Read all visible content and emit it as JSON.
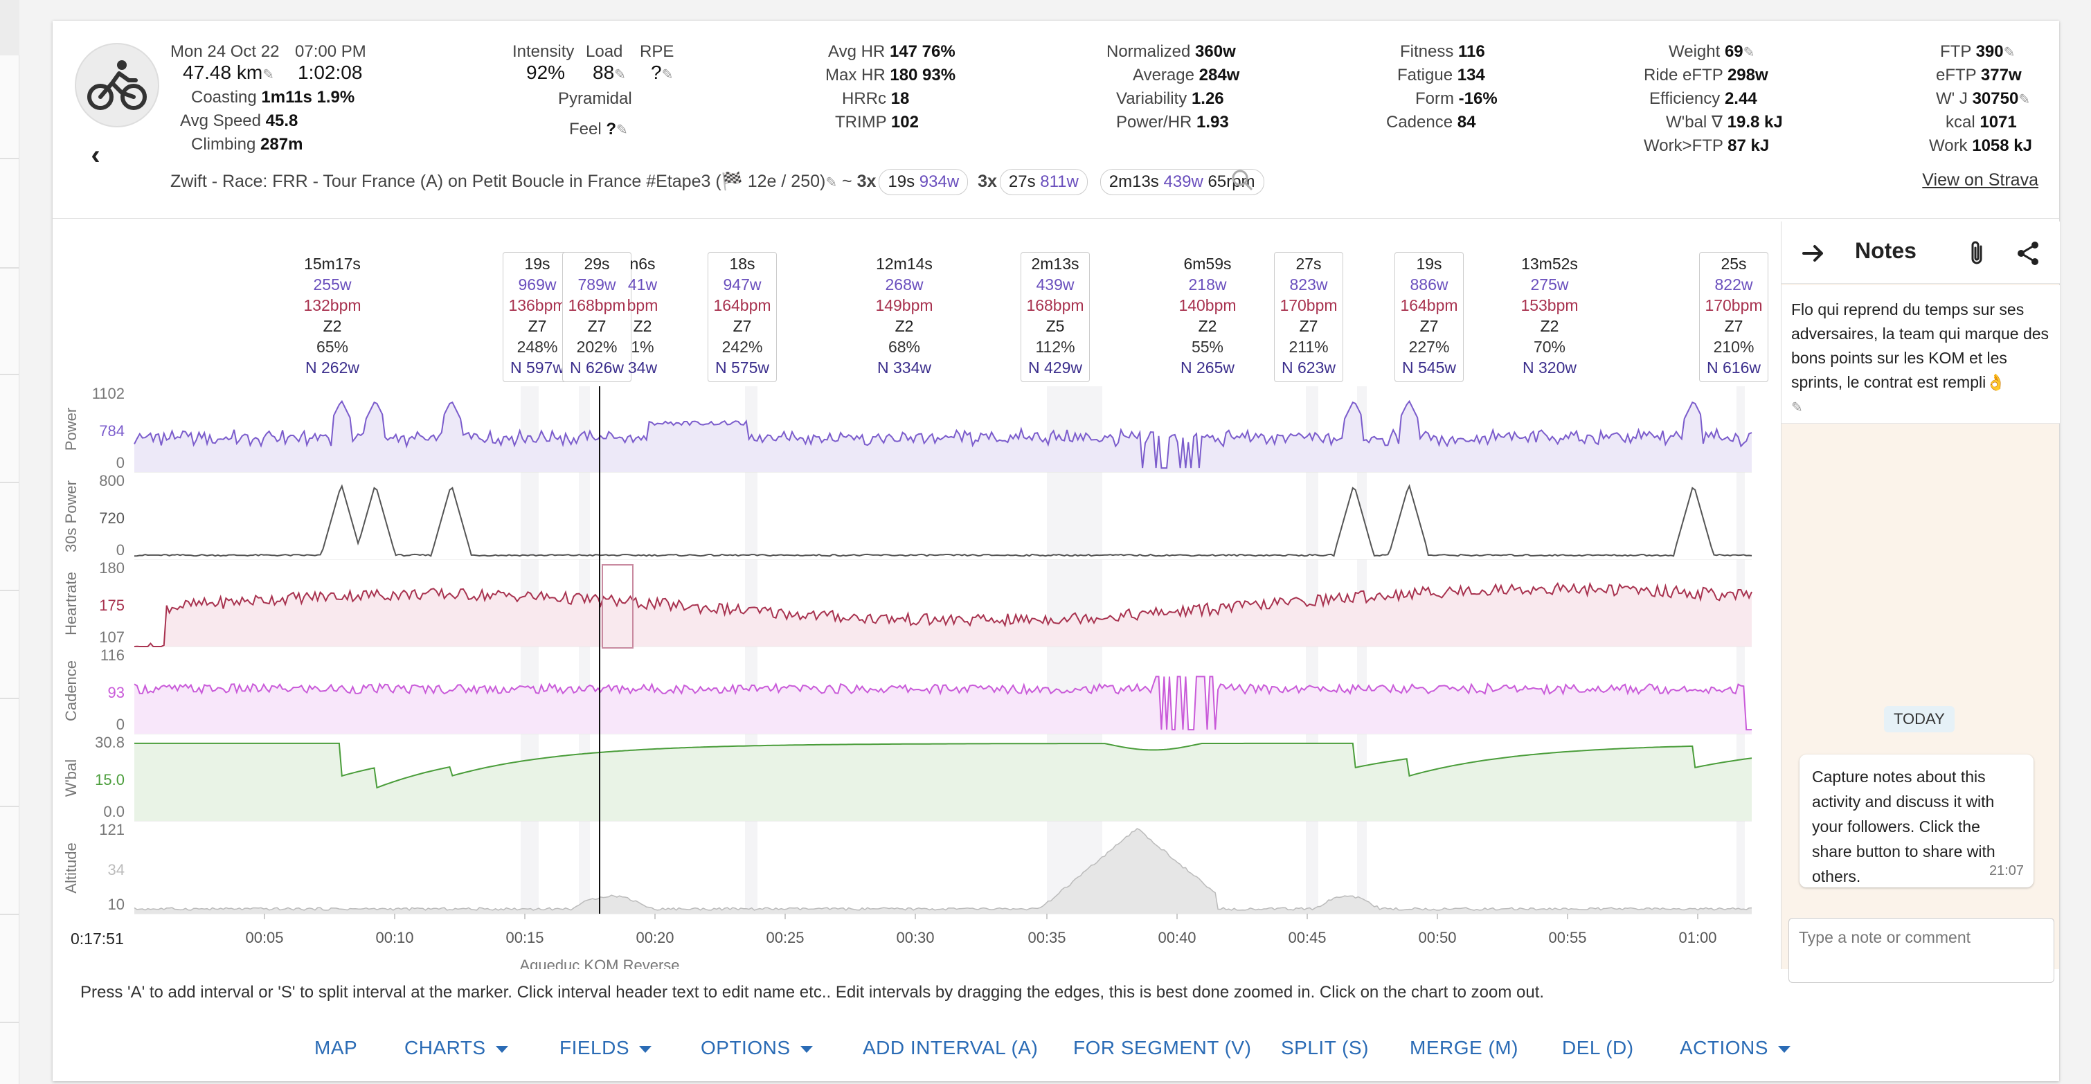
{
  "activity": {
    "date": "Mon 24 Oct 22",
    "time": "07:00 PM",
    "distance": "47.48 km",
    "duration": "1:02:08",
    "coasting_label": "Coasting",
    "coasting": "1m11s  1.9%",
    "avg_speed_label": "Avg Speed",
    "avg_speed": "45.8",
    "climbing_label": "Climbing",
    "climbing": "287m",
    "intensity_label": "Intensity",
    "intensity": "92%",
    "load_label": "Load",
    "load": "88",
    "rpe_label": "RPE",
    "rpe": "?",
    "pyramidal": "Pyramidal",
    "feel_label": "Feel",
    "feel": "?",
    "avg_hr_label": "Avg HR",
    "avg_hr": "147  76%",
    "max_hr_label": "Max HR",
    "max_hr": "180  93%",
    "hrrc_label": "HRRc",
    "hrrc": "18",
    "trimp_label": "TRIMP",
    "trimp": "102",
    "normalized_label": "Normalized",
    "normalized": "360w",
    "average_label": "Average",
    "average": "284w",
    "variability_label": "Variability",
    "variability": "1.26",
    "powerhr_label": "Power/HR",
    "powerhr": "1.93",
    "fitness_label": "Fitness",
    "fitness": "116",
    "fatigue_label": "Fatigue",
    "fatigue": "134",
    "form_label": "Form",
    "form": "-16%",
    "cadence_label": "Cadence",
    "cadence": "84",
    "weight_label": "Weight",
    "weight": "69",
    "rideeftp_label": "Ride eFTP",
    "rideeftp": "298w",
    "efficiency_label": "Efficiency",
    "efficiency": "2.44",
    "wbal_label": "W'bal ∇",
    "wbal": "19.8 kJ",
    "workftp_label": "Work>FTP",
    "workftp": "87 kJ",
    "ftp_label": "FTP",
    "ftp": "390",
    "eftp_label": "eFTP",
    "eftp": "377w",
    "wj_label": "W' J",
    "wj": "30750",
    "kcal_label": "kcal",
    "kcal": "1071",
    "work_label": "Work",
    "work": "1058 kJ",
    "title": "Zwift - Race: FRR - Tour France (A) on Petit Boucle in France #Etape3 (🏁 12e / 250)",
    "chip1_x": "3x",
    "chip1_a": "19s",
    "chip1_b": "934w",
    "chip2_x": "3x",
    "chip2_a": "27s",
    "chip2_b": "811w",
    "chip3_a": "2m13s",
    "chip3_b": "439w",
    "chip3_c": "65rpm",
    "strava": "View on Strava"
  },
  "intervals": [
    {
      "d": "15m17s",
      "w": "255w",
      "h": "132bpm",
      "z": "Z2",
      "p": "65%",
      "n": "N 262w"
    },
    {
      "d": "19s",
      "w": "969w",
      "h": "136bpm",
      "z": "Z7",
      "p": "248%",
      "n": "N 597w"
    },
    {
      "d": "29s",
      "w": "789w",
      "h": "168bpm",
      "z": "Z7",
      "p": "202%",
      "n": "N 626w"
    },
    {
      "d": "n6s",
      "w": "41w",
      "h": "bpm",
      "z": "Z2",
      "p": "1%",
      "n": "34w"
    },
    {
      "d": "18s",
      "w": "947w",
      "h": "164bpm",
      "z": "Z7",
      "p": "242%",
      "n": "N 575w"
    },
    {
      "d": "12m14s",
      "w": "268w",
      "h": "149bpm",
      "z": "Z2",
      "p": "68%",
      "n": "N 334w"
    },
    {
      "d": "2m13s",
      "w": "439w",
      "h": "168bpm",
      "z": "Z5",
      "p": "112%",
      "n": "N 429w"
    },
    {
      "d": "6m59s",
      "w": "218w",
      "h": "140bpm",
      "z": "Z2",
      "p": "55%",
      "n": "N 265w"
    },
    {
      "d": "27s",
      "w": "823w",
      "h": "170bpm",
      "z": "Z7",
      "p": "211%",
      "n": "N 623w"
    },
    {
      "d": "19s",
      "w": "886w",
      "h": "164bpm",
      "z": "Z7",
      "p": "227%",
      "n": "N 545w"
    },
    {
      "d": "13m52s",
      "w": "275w",
      "h": "153bpm",
      "z": "Z2",
      "p": "70%",
      "n": "N 320w"
    },
    {
      "d": "25s",
      "w": "822w",
      "h": "170bpm",
      "z": "Z7",
      "p": "210%",
      "n": "N 616w"
    }
  ],
  "chart_data": {
    "type": "line",
    "x_ticks": [
      "00:05",
      "00:10",
      "00:15",
      "00:20",
      "00:25",
      "00:30",
      "00:35",
      "00:40",
      "00:45",
      "00:50",
      "00:55",
      "01:00"
    ],
    "cursor_time": "0:17:51",
    "segment_label": "Aqueduc KOM Reverse",
    "panels": [
      {
        "name": "Power",
        "ticks": [
          "1102",
          "784",
          "0"
        ],
        "color": "#7b5ccc"
      },
      {
        "name": "30s Power",
        "ticks": [
          "800",
          "720",
          "0"
        ],
        "color": "#555555"
      },
      {
        "name": "Heartrate",
        "ticks": [
          "180",
          "175",
          "107"
        ],
        "color": "#a8324f"
      },
      {
        "name": "Cadence",
        "ticks": [
          "116",
          "93",
          "0"
        ],
        "color": "#c95ad9"
      },
      {
        "name": "W'bal",
        "ticks": [
          "30.8",
          "15.0",
          "0.0"
        ],
        "color": "#4a9d3a"
      },
      {
        "name": "Altitude",
        "ticks": [
          "121",
          "34",
          "10"
        ],
        "color": "#bbbbbb"
      }
    ]
  },
  "notes": {
    "title": "Notes",
    "first_note": "Flo qui reprend du temps sur ses adversaires, la team qui marque des bons points sur les KOM et les sprints, le contrat est rempli👌",
    "today": "TODAY",
    "bubble": "Capture notes about this activity and discuss it with your followers. Click the share button to share with others.",
    "bubble_time": "21:07",
    "input_placeholder": "Type a note or comment"
  },
  "help": "Press 'A' to add interval or 'S' to split interval at the marker. Click interval header text to edit name etc.. Edit intervals by dragging the edges, this is best done zoomed in. Click on the chart to zoom out.",
  "actions": {
    "map": "MAP",
    "charts": "CHARTS",
    "fields": "FIELDS",
    "options": "OPTIONS",
    "add": "ADD INTERVAL (A)",
    "segment": "FOR SEGMENT (V)",
    "split": "SPLIT (S)",
    "merge": "MERGE (M)",
    "del": "DEL (D)",
    "actions": "ACTIONS"
  }
}
